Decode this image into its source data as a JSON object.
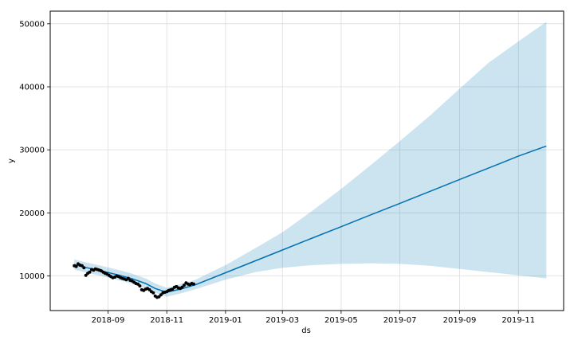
{
  "chart_data": {
    "type": "line",
    "title": "",
    "xlabel": "ds",
    "ylabel": "y",
    "xlim": [
      "2018-07-03",
      "2019-12-18"
    ],
    "ylim": [
      4500,
      52000
    ],
    "grid": true,
    "x_ticks": [
      "2018-09",
      "2018-11",
      "2019-01",
      "2019-03",
      "2019-05",
      "2019-07",
      "2019-09",
      "2019-11"
    ],
    "y_ticks": [
      10000,
      20000,
      30000,
      40000,
      50000
    ],
    "colors": {
      "forecast_line": "#0072B2",
      "uncertainty_band": "#0072B2",
      "observed_points": "#000000",
      "grid": "#dddddd",
      "frame": "#000000"
    },
    "observed": {
      "x": [
        "2018-07-28",
        "2018-07-30",
        "2018-08-01",
        "2018-08-03",
        "2018-08-05",
        "2018-08-07",
        "2018-08-09",
        "2018-08-11",
        "2018-08-13",
        "2018-08-15",
        "2018-08-17",
        "2018-08-19",
        "2018-08-21",
        "2018-08-23",
        "2018-08-25",
        "2018-08-27",
        "2018-08-29",
        "2018-08-31",
        "2018-09-02",
        "2018-09-04",
        "2018-09-06",
        "2018-09-08",
        "2018-09-10",
        "2018-09-12",
        "2018-09-14",
        "2018-09-16",
        "2018-09-18",
        "2018-09-20",
        "2018-09-22",
        "2018-09-24",
        "2018-09-26",
        "2018-09-28",
        "2018-09-30",
        "2018-10-02",
        "2018-10-04",
        "2018-10-06",
        "2018-10-08",
        "2018-10-10",
        "2018-10-12",
        "2018-10-14",
        "2018-10-16",
        "2018-10-18",
        "2018-10-20",
        "2018-10-22",
        "2018-10-24",
        "2018-10-26",
        "2018-10-28",
        "2018-10-30",
        "2018-11-01",
        "2018-11-03",
        "2018-11-05",
        "2018-11-07",
        "2018-11-09",
        "2018-11-11",
        "2018-11-13",
        "2018-11-15",
        "2018-11-17",
        "2018-11-19",
        "2018-11-21",
        "2018-11-23",
        "2018-11-25",
        "2018-11-27",
        "2018-11-29"
      ],
      "y": [
        11600,
        11500,
        11900,
        11700,
        11600,
        11300,
        10100,
        10400,
        10600,
        11000,
        10900,
        11100,
        11000,
        10900,
        10800,
        10600,
        10400,
        10300,
        10100,
        9900,
        9700,
        9800,
        10000,
        9900,
        9700,
        9600,
        9500,
        9400,
        9600,
        9300,
        9200,
        9000,
        8800,
        8700,
        8400,
        7800,
        7700,
        7900,
        8000,
        7800,
        7500,
        7300,
        6800,
        6600,
        6700,
        7000,
        7300,
        7400,
        7500,
        7700,
        7800,
        7900,
        8200,
        8300,
        8100,
        8000,
        8200,
        8500,
        8900,
        8700,
        8600,
        8800,
        8700
      ],
      "marker": "dot"
    },
    "forecast": {
      "x": [
        "2018-07-28",
        "2018-08-10",
        "2018-08-25",
        "2018-09-10",
        "2018-09-25",
        "2018-10-10",
        "2018-10-20",
        "2018-11-01",
        "2018-11-15",
        "2018-12-01",
        "2019-01-01",
        "2019-02-01",
        "2019-03-01",
        "2019-04-01",
        "2019-05-01",
        "2019-06-01",
        "2019-07-01",
        "2019-08-01",
        "2019-09-01",
        "2019-10-01",
        "2019-11-01",
        "2019-11-30"
      ],
      "yhat": [
        11800,
        11300,
        10800,
        10200,
        9600,
        8800,
        8000,
        7400,
        7900,
        8600,
        10500,
        12400,
        14100,
        16000,
        17800,
        19700,
        21500,
        23400,
        25300,
        27100,
        29000,
        30600
      ],
      "yhat_lower": [
        11000,
        10500,
        10000,
        9400,
        8800,
        8000,
        7300,
        6700,
        7200,
        7900,
        9400,
        10600,
        11300,
        11700,
        11900,
        12000,
        11900,
        11600,
        11100,
        10600,
        10100,
        9600
      ],
      "yhat_upper": [
        12600,
        12100,
        11600,
        11000,
        10400,
        9600,
        8800,
        8100,
        8700,
        9400,
        11700,
        14400,
        16900,
        20300,
        23800,
        27600,
        31400,
        35400,
        39700,
        43800,
        47200,
        50300
      ]
    }
  }
}
